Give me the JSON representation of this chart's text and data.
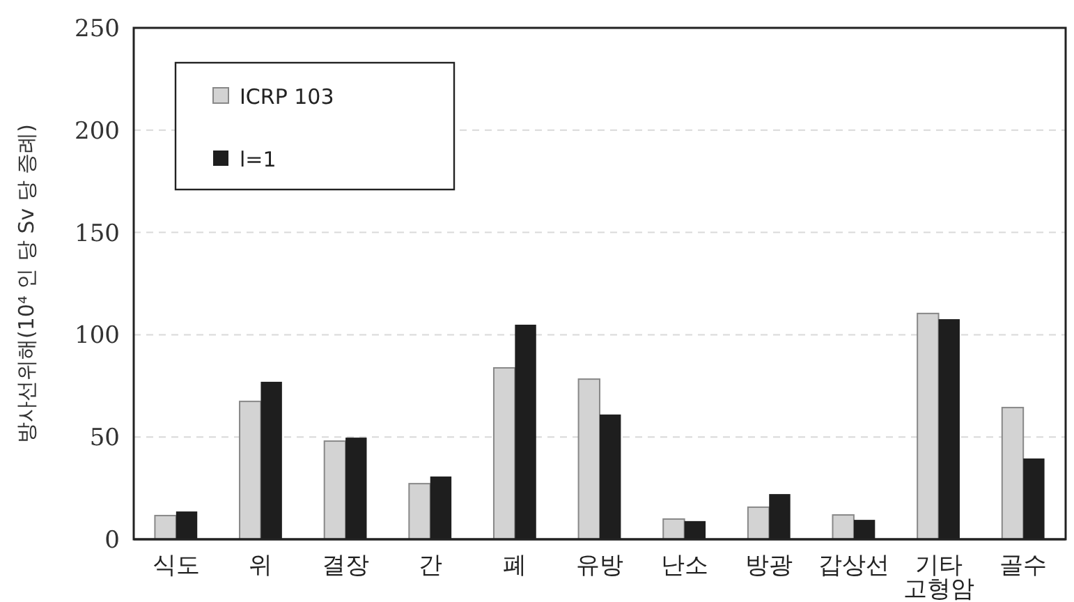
{
  "chart_data": {
    "type": "bar",
    "ylabel": "방사선위해(10⁴ 인 당 Sv 당 증례)",
    "categories": [
      "식도",
      "위",
      "결장",
      "간",
      "폐",
      "유방",
      "난소",
      "방광",
      "갑상선",
      "기타\n고형암",
      "골수"
    ],
    "series": [
      {
        "name": "ICRP 103",
        "color": "#d3d3d3",
        "values": [
          11.6,
          67.4,
          48,
          27.2,
          83.8,
          78.3,
          9.9,
          15.7,
          11.9,
          110.4,
          64.4
        ]
      },
      {
        "name": "l=1",
        "color": "#1e1e1e",
        "values": [
          13.6,
          77,
          49.7,
          30.7,
          104.9,
          61,
          8.9,
          22.1,
          9.5,
          107.6,
          39.5
        ]
      }
    ],
    "ylim": [
      0,
      250
    ],
    "yticks": [
      0,
      50,
      100,
      150,
      200,
      250
    ],
    "grid": "y",
    "legend": "top left"
  }
}
